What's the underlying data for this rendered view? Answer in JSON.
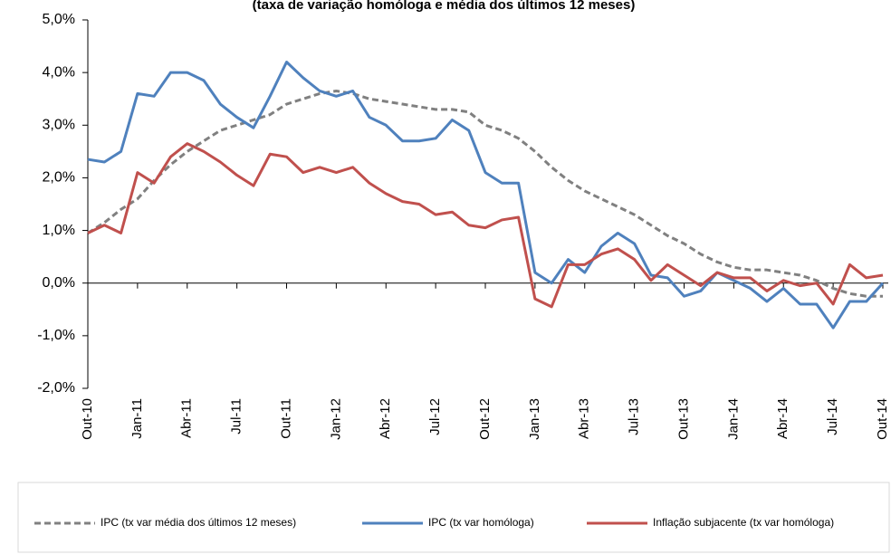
{
  "chart_data": {
    "type": "line",
    "title": "(taxa de variação homóloga e média dos últimos 12 meses)",
    "categories": [
      "Out-10",
      null,
      null,
      "Jan-11",
      null,
      null,
      "Abr-11",
      null,
      null,
      "Jul-11",
      null,
      null,
      "Out-11",
      null,
      null,
      "Jan-12",
      null,
      null,
      "Abr-12",
      null,
      null,
      "Jul-12",
      null,
      null,
      "Out-12",
      null,
      null,
      "Jan-13",
      null,
      null,
      "Abr-13",
      null,
      null,
      "Jul-13",
      null,
      null,
      "Out-13",
      null,
      null,
      "Jan-14",
      null,
      null,
      "Abr-14",
      null,
      null,
      "Jul-14",
      null,
      null,
      "Out-14"
    ],
    "series": [
      {
        "name": "IPC (tx var média dos últimos 12 meses)",
        "color": "#808080",
        "dashed": true,
        "values": [
          0.95,
          1.15,
          1.4,
          1.6,
          1.95,
          2.25,
          2.5,
          2.7,
          2.9,
          3.0,
          3.1,
          3.2,
          3.4,
          3.5,
          3.6,
          3.65,
          3.6,
          3.5,
          3.45,
          3.4,
          3.35,
          3.3,
          3.3,
          3.25,
          3.0,
          2.9,
          2.75,
          2.5,
          2.2,
          1.95,
          1.75,
          1.6,
          1.45,
          1.3,
          1.1,
          0.9,
          0.75,
          0.55,
          0.4,
          0.3,
          0.25,
          0.25,
          0.2,
          0.15,
          0.05,
          -0.1,
          -0.2,
          -0.25,
          -0.25
        ]
      },
      {
        "name": "IPC (tx var homóloga)",
        "color": "#4f81bd",
        "dashed": false,
        "values": [
          2.35,
          2.3,
          2.5,
          3.6,
          3.55,
          4.0,
          4.0,
          3.85,
          3.4,
          3.15,
          2.95,
          3.55,
          4.2,
          3.9,
          3.65,
          3.55,
          3.65,
          3.15,
          3.0,
          2.7,
          2.7,
          2.75,
          3.1,
          2.9,
          2.1,
          1.9,
          1.9,
          0.2,
          0.0,
          0.45,
          0.2,
          0.7,
          0.95,
          0.75,
          0.15,
          0.1,
          -0.25,
          -0.15,
          0.2,
          0.05,
          -0.1,
          -0.35,
          -0.1,
          -0.4,
          -0.4,
          -0.85,
          -0.35,
          -0.35,
          0.0
        ]
      },
      {
        "name": "Inflação subjacente (tx var homóloga)",
        "color": "#c0504d",
        "dashed": false,
        "values": [
          0.95,
          1.1,
          0.95,
          2.1,
          1.9,
          2.4,
          2.65,
          2.5,
          2.3,
          2.05,
          1.85,
          2.45,
          2.4,
          2.1,
          2.2,
          2.1,
          2.2,
          1.9,
          1.7,
          1.55,
          1.5,
          1.3,
          1.35,
          1.1,
          1.05,
          1.2,
          1.25,
          -0.3,
          -0.45,
          0.35,
          0.35,
          0.55,
          0.65,
          0.45,
          0.05,
          0.35,
          0.15,
          -0.05,
          0.2,
          0.1,
          0.1,
          -0.15,
          0.05,
          -0.05,
          0.0,
          -0.4,
          0.35,
          0.1,
          0.15
        ]
      }
    ],
    "ylim": [
      -2,
      5
    ],
    "yticks": [
      {
        "value": -2,
        "label": "-2,0%"
      },
      {
        "value": -1,
        "label": "-1,0%"
      },
      {
        "value": 0,
        "label": "0,0%"
      },
      {
        "value": 1,
        "label": "1,0%"
      },
      {
        "value": 2,
        "label": "2,0%"
      },
      {
        "value": 3,
        "label": "3,0%"
      },
      {
        "value": 4,
        "label": "4,0%"
      },
      {
        "value": 5,
        "label": "5,0%"
      }
    ],
    "legend": "bottom"
  }
}
